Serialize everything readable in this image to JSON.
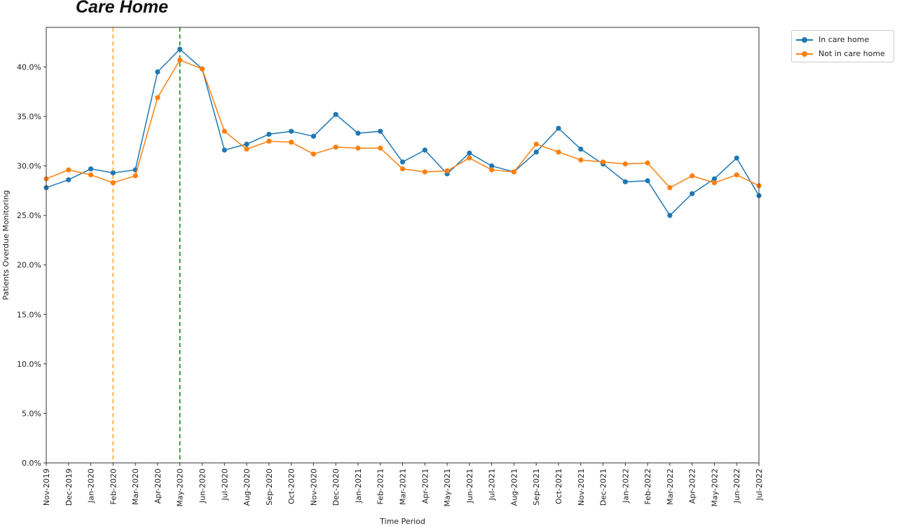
{
  "page": {
    "title": "Care Home"
  },
  "colors": {
    "in_care_home": "#1f77b4",
    "not_in_care_home": "#ff7f0e",
    "vline_feb_2020": "#ffa500",
    "vline_may_2020": "#008000"
  },
  "chart_data": {
    "type": "line",
    "xlabel": "Time Period",
    "ylabel": "Patients Overdue Monitoring",
    "ylim": [
      0,
      44
    ],
    "yticks": [
      0,
      5,
      10,
      15,
      20,
      25,
      30,
      35,
      40
    ],
    "ytick_labels": [
      "0.0%",
      "5.0%",
      "10.0%",
      "15.0%",
      "20.0%",
      "25.0%",
      "30.0%",
      "35.0%",
      "40.0%"
    ],
    "grid": false,
    "legend_position": "outside-top-right",
    "categories": [
      "Nov-2019",
      "Dec-2019",
      "Jan-2020",
      "Feb-2020",
      "Mar-2020",
      "Apr-2020",
      "May-2020",
      "Jun-2020",
      "Jul-2020",
      "Aug-2020",
      "Sep-2020",
      "Oct-2020",
      "Nov-2020",
      "Dec-2020",
      "Jan-2021",
      "Feb-2021",
      "Mar-2021",
      "Apr-2021",
      "May-2021",
      "Jun-2021",
      "Jul-2021",
      "Aug-2021",
      "Sep-2021",
      "Oct-2021",
      "Nov-2021",
      "Dec-2021",
      "Jan-2022",
      "Feb-2022",
      "Mar-2022",
      "Apr-2022",
      "May-2022",
      "Jun-2022",
      "Jul-2022"
    ],
    "series": [
      {
        "name": "In care home",
        "color": "#1f77b4",
        "values": [
          27.8,
          28.6,
          29.7,
          29.3,
          29.6,
          39.5,
          41.8,
          39.8,
          31.6,
          32.2,
          33.2,
          33.5,
          33.0,
          35.2,
          33.3,
          33.5,
          30.4,
          31.6,
          29.2,
          31.3,
          30.0,
          29.4,
          31.4,
          33.8,
          31.7,
          30.2,
          28.4,
          28.5,
          25.0,
          27.2,
          28.7,
          30.8,
          27.0
        ]
      },
      {
        "name": "Not in care home",
        "color": "#ff7f0e",
        "values": [
          28.7,
          29.6,
          29.1,
          28.3,
          29.0,
          36.9,
          40.7,
          39.8,
          33.5,
          31.7,
          32.5,
          32.4,
          31.2,
          31.9,
          31.8,
          31.8,
          29.7,
          29.4,
          29.5,
          30.8,
          29.6,
          29.4,
          32.2,
          31.4,
          30.6,
          30.4,
          30.2,
          30.3,
          27.8,
          29.0,
          28.3,
          29.1,
          28.0
        ]
      }
    ],
    "vlines": [
      {
        "x": "Feb-2020",
        "color": "#ffa500",
        "style": "dashed"
      },
      {
        "x": "May-2020",
        "color": "#008000",
        "style": "dashed"
      }
    ]
  }
}
